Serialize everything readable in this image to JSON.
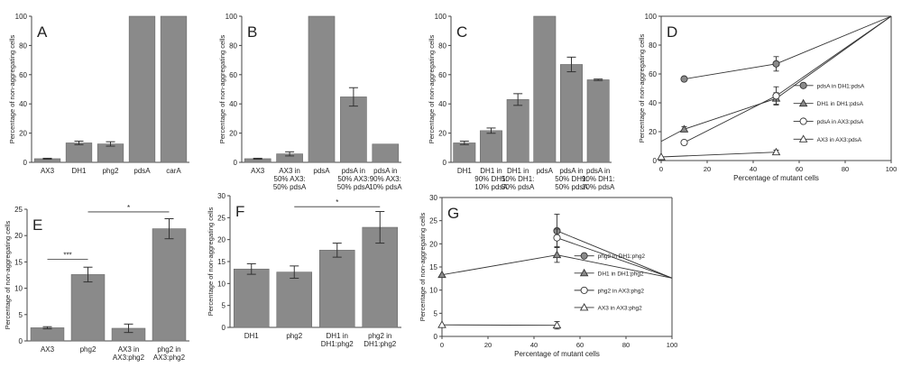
{
  "colors": {
    "bar": "#8a8a8a",
    "bar_edge": "#6a6a6a",
    "axis": "#444444",
    "text": "#222222",
    "err": "#333333"
  },
  "chart_data": [
    {
      "id": "A",
      "type": "bar",
      "panel_label": "A",
      "ylabel": "Percentage of non-aggregating cells",
      "ylim": [
        0,
        100
      ],
      "yticks": [
        0,
        20,
        40,
        60,
        80,
        100
      ],
      "categories": [
        [
          "AX3"
        ],
        [
          "DH1"
        ],
        [
          "phg2"
        ],
        [
          "pdsA"
        ],
        [
          "carA"
        ]
      ],
      "values": [
        2.5,
        13.3,
        12.6,
        100,
        100
      ],
      "errors": [
        0.3,
        1.2,
        1.5,
        0,
        0
      ],
      "sig": []
    },
    {
      "id": "B",
      "type": "bar",
      "panel_label": "B",
      "ylabel": "Percentage of non-aggregating cells",
      "ylim": [
        0,
        100
      ],
      "yticks": [
        0,
        20,
        40,
        60,
        80,
        100
      ],
      "categories": [
        [
          "AX3"
        ],
        [
          "AX3 in",
          "50% AX3:",
          "50% pdsA"
        ],
        [
          "pdsA"
        ],
        [
          "pdsA in",
          "50% AX3:",
          "50% pdsA"
        ],
        [
          "pdsA in",
          "90% AX3:",
          "10% pdsA"
        ]
      ],
      "values": [
        2.5,
        5.8,
        100,
        44.8,
        12.5
      ],
      "errors": [
        0.3,
        1.4,
        0,
        6.3,
        0
      ],
      "sig": []
    },
    {
      "id": "C",
      "type": "bar",
      "panel_label": "C",
      "ylabel": "Percentage of non-aggregating cells",
      "ylim": [
        0,
        100
      ],
      "yticks": [
        0,
        20,
        40,
        60,
        80,
        100
      ],
      "categories": [
        [
          "DH1"
        ],
        [
          "DH1 in",
          "90% DH1:",
          "10% pdsA"
        ],
        [
          "DH1 in",
          "50% DH1:",
          "50% pdsA"
        ],
        [
          "pdsA"
        ],
        [
          "pdsA in",
          "50% DH1:",
          "50% pdsA"
        ],
        [
          "pdsA in",
          "90% DH1:",
          "10% pdsA"
        ]
      ],
      "values": [
        13.3,
        21.7,
        43,
        100,
        67,
        56.5
      ],
      "errors": [
        1.2,
        1.8,
        4,
        0,
        5,
        0.5
      ],
      "sig": []
    },
    {
      "id": "D",
      "type": "line",
      "panel_label": "D",
      "ylabel": "Percentage of non-aggregating cells",
      "xlabel": "Percentage of mutant cells",
      "xlim": [
        0,
        100
      ],
      "ylim": [
        0,
        100
      ],
      "xticks": [
        0,
        20,
        40,
        60,
        80,
        100
      ],
      "yticks": [
        0,
        20,
        40,
        60,
        80,
        100
      ],
      "legend": "right",
      "series": [
        {
          "name": "pdsA in DH1:pdsA",
          "marker": "circle-filled",
          "x": [
            10,
            50,
            100
          ],
          "y": [
            56.5,
            67,
            100
          ],
          "err": [
            0,
            5,
            0
          ]
        },
        {
          "name": "DH1 in DH1:pdsA",
          "marker": "triangle-filled",
          "x": [
            0,
            10,
            50,
            100
          ],
          "y": [
            13.3,
            21.7,
            43,
            100
          ],
          "err": [
            0,
            1.8,
            4,
            0
          ]
        },
        {
          "name": "pdsA in AX3:pdsA",
          "marker": "circle-open",
          "x": [
            10,
            50,
            100
          ],
          "y": [
            12.5,
            44.8,
            100
          ],
          "err": [
            0,
            6.3,
            0
          ]
        },
        {
          "name": "AX3 in AX3:pdsA",
          "marker": "triangle-open",
          "x": [
            0,
            50
          ],
          "y": [
            2.5,
            5.8
          ],
          "err": [
            0,
            1.4
          ]
        }
      ]
    },
    {
      "id": "E",
      "type": "bar",
      "panel_label": "E",
      "ylabel": "Percentage of non-aggregating cells",
      "ylim": [
        0,
        25
      ],
      "yticks": [
        0,
        5,
        10,
        15,
        20,
        25
      ],
      "categories": [
        [
          "AX3"
        ],
        [
          "phg2"
        ],
        [
          "AX3 in",
          "AX3:phg2"
        ],
        [
          "phg2 in",
          "AX3:phg2"
        ]
      ],
      "values": [
        2.5,
        12.6,
        2.4,
        21.3
      ],
      "errors": [
        0.2,
        1.4,
        0.8,
        1.9
      ],
      "sig": [
        {
          "from": 0,
          "to": 1,
          "y": 15.5,
          "label": "***"
        },
        {
          "from": 1,
          "to": 3,
          "y": 24.5,
          "label": "*"
        }
      ]
    },
    {
      "id": "F",
      "type": "bar",
      "panel_label": "F",
      "ylabel": "Percentage of non-aggregating cells",
      "ylim": [
        0,
        30
      ],
      "yticks": [
        0,
        5,
        10,
        15,
        20,
        25,
        30
      ],
      "categories": [
        [
          "DH1"
        ],
        [
          "phg2"
        ],
        [
          "DH1 in",
          "DH1:phg2"
        ],
        [
          "phg2 in",
          "DH1:phg2"
        ]
      ],
      "values": [
        13.3,
        12.6,
        17.6,
        22.8
      ],
      "errors": [
        1.2,
        1.4,
        1.6,
        3.6
      ],
      "sig": [
        {
          "from": 1,
          "to": 3,
          "y": 27.5,
          "label": "*"
        }
      ]
    },
    {
      "id": "G",
      "type": "line",
      "panel_label": "G",
      "ylabel": "Percentage of non-aggregating cells",
      "xlabel": "Percentage of mutant cells",
      "xlim": [
        0,
        100
      ],
      "ylim": [
        0,
        30
      ],
      "xticks": [
        0,
        20,
        40,
        60,
        80,
        100
      ],
      "yticks": [
        0,
        5,
        10,
        15,
        20,
        25,
        30
      ],
      "legend": "right",
      "series": [
        {
          "name": "phg2 in DH1:phg2",
          "marker": "circle-filled",
          "x": [
            50,
            100
          ],
          "y": [
            22.8,
            12.6
          ],
          "err": [
            3.6,
            0
          ]
        },
        {
          "name": "DH1 in DH1:phg2",
          "marker": "triangle-filled",
          "x": [
            0,
            50,
            100
          ],
          "y": [
            13.3,
            17.6,
            12.6
          ],
          "err": [
            0,
            1.6,
            0
          ]
        },
        {
          "name": "phg2 in AX3:phg2",
          "marker": "circle-open",
          "x": [
            50,
            100
          ],
          "y": [
            21.3,
            12.6
          ],
          "err": [
            1.9,
            0
          ]
        },
        {
          "name": "AX3 in AX3:phg2",
          "marker": "triangle-open",
          "x": [
            0,
            50
          ],
          "y": [
            2.5,
            2.4
          ],
          "err": [
            0,
            0.8
          ]
        }
      ]
    }
  ]
}
